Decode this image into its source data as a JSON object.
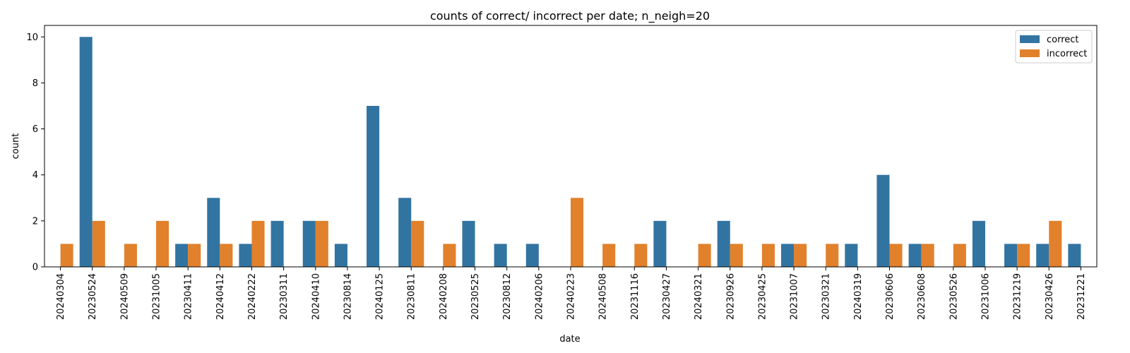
{
  "chart_data": {
    "type": "bar",
    "title": "counts of correct/ incorrect per date; n_neigh=20",
    "xlabel": "date",
    "ylabel": "count",
    "ylim": [
      0,
      10.5
    ],
    "yticks": [
      0,
      2,
      4,
      6,
      8,
      10
    ],
    "legend_placement": "top-right",
    "grid": false,
    "categories": [
      "20240304",
      "20230524",
      "20240509",
      "20231005",
      "20230411",
      "20240412",
      "20240222",
      "20230311",
      "20240410",
      "20230814",
      "20240125",
      "20230811",
      "20240208",
      "20230525",
      "20230812",
      "20240206",
      "20240223",
      "20240508",
      "20231116",
      "20230427",
      "20240321",
      "20230926",
      "20230425",
      "20231007",
      "20230321",
      "20240319",
      "20230606",
      "20230608",
      "20230526",
      "20231006",
      "20231219",
      "20230426",
      "20231221"
    ],
    "series": [
      {
        "name": "correct",
        "color": "#3274a1",
        "values": [
          0,
          10,
          0,
          0,
          1,
          3,
          1,
          2,
          2,
          1,
          7,
          3,
          0,
          2,
          1,
          1,
          0,
          0,
          0,
          2,
          0,
          2,
          0,
          1,
          0,
          1,
          4,
          1,
          0,
          2,
          1,
          1,
          1
        ]
      },
      {
        "name": "incorrect",
        "color": "#e1812c",
        "values": [
          1,
          2,
          1,
          2,
          1,
          1,
          2,
          0,
          2,
          0,
          0,
          2,
          1,
          0,
          0,
          0,
          3,
          1,
          1,
          0,
          1,
          1,
          1,
          1,
          1,
          0,
          1,
          1,
          1,
          0,
          1,
          2,
          0
        ]
      }
    ]
  }
}
